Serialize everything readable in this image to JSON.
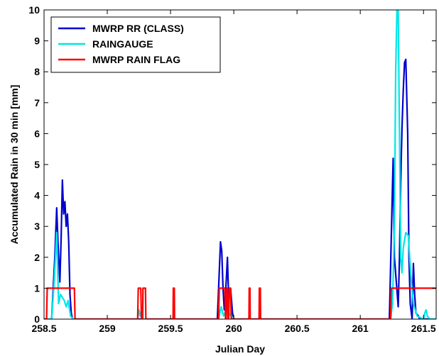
{
  "chart_data": {
    "type": "line",
    "xlabel": "Julian Day",
    "ylabel": "Accumulated Rain in 30 min [mm]",
    "xlim": [
      258.5,
      261.6
    ],
    "ylim": [
      0,
      10
    ],
    "xticks": [
      258.5,
      259,
      259.5,
      260,
      260.5,
      261,
      261.5
    ],
    "xtick_labels": [
      "258.5",
      "259",
      "259.5",
      "260",
      "260.5",
      "261",
      "261.5"
    ],
    "yticks": [
      0,
      1,
      2,
      3,
      4,
      5,
      6,
      7,
      8,
      9,
      10
    ],
    "ytick_labels": [
      "0",
      "1",
      "2",
      "3",
      "4",
      "5",
      "6",
      "7",
      "8",
      "9",
      "10"
    ],
    "grid": false,
    "legend_position": "top-left",
    "series": [
      {
        "name": "MWRP RR (CLASS)",
        "color": "#0000cc",
        "x": [
          258.5,
          258.56,
          258.585,
          258.6,
          258.61,
          258.625,
          258.635,
          258.645,
          258.655,
          258.665,
          258.675,
          258.685,
          258.695,
          258.705,
          258.715,
          258.725,
          258.735,
          258.75,
          259.85,
          259.87,
          259.885,
          259.895,
          259.905,
          259.915,
          259.925,
          259.94,
          259.95,
          259.96,
          259.975,
          259.99,
          260.0,
          261.23,
          261.25,
          261.26,
          261.27,
          261.285,
          261.3,
          261.31,
          261.32,
          261.33,
          261.34,
          261.35,
          261.36,
          261.375,
          261.385,
          261.395,
          261.41,
          261.42,
          261.43,
          261.44,
          261.46,
          261.47,
          261.6
        ],
        "y": [
          0,
          0,
          2.0,
          3.6,
          2.5,
          1.2,
          2.6,
          4.5,
          3.4,
          3.8,
          3.0,
          3.4,
          2.5,
          0.8,
          0.2,
          0,
          0,
          0,
          0,
          0,
          1.5,
          2.5,
          2.2,
          1.0,
          0.3,
          1.2,
          2.0,
          0.6,
          1.0,
          0.2,
          0,
          0,
          3.5,
          5.2,
          2.0,
          1.2,
          0.4,
          2.0,
          4.5,
          6.2,
          7.4,
          8.3,
          8.4,
          6.0,
          2.0,
          0.5,
          0,
          1.8,
          0.8,
          0.2,
          0.1,
          0,
          0
        ]
      },
      {
        "name": "RAINGAUGE",
        "color": "#00e6e6",
        "x": [
          258.5,
          258.56,
          258.58,
          258.6,
          258.615,
          258.63,
          258.645,
          258.66,
          258.675,
          258.69,
          258.71,
          258.73,
          258.75,
          259.24,
          259.25,
          259.26,
          259.27,
          259.28,
          259.88,
          259.9,
          259.92,
          259.94,
          259.96,
          259.98,
          260.0,
          261.24,
          261.255,
          261.27,
          261.28,
          261.29,
          261.3,
          261.31,
          261.32,
          261.33,
          261.34,
          261.36,
          261.38,
          261.4,
          261.42,
          261.45,
          261.5,
          261.51,
          261.52,
          261.53,
          261.55,
          261.6
        ],
        "y": [
          0,
          0,
          1.2,
          2.8,
          0.5,
          0.8,
          0.7,
          0.6,
          0.4,
          0.6,
          0.1,
          0,
          0,
          0,
          0.3,
          0.1,
          0.3,
          0,
          0,
          0.4,
          0.1,
          0.3,
          0.2,
          0.1,
          0,
          0,
          0.5,
          3.0,
          8.0,
          10.0,
          10.0,
          6.0,
          2.0,
          1.5,
          2.3,
          2.8,
          2.7,
          1.4,
          0.5,
          0.1,
          0,
          0.2,
          0.3,
          0.1,
          0,
          0
        ]
      },
      {
        "name": "MWRP RAIN FLAG",
        "color": "#ff0000",
        "x": [
          258.5,
          258.52,
          258.525,
          258.535,
          258.54,
          258.74,
          258.745,
          259.24,
          259.245,
          259.265,
          259.27,
          259.28,
          259.282,
          259.302,
          259.305,
          259.52,
          259.522,
          259.53,
          259.532,
          259.88,
          259.885,
          259.93,
          259.935,
          259.94,
          259.945,
          259.95,
          259.955,
          259.96,
          259.965,
          259.975,
          259.98,
          260.12,
          260.122,
          260.128,
          260.13,
          260.2,
          260.202,
          260.21,
          260.212,
          261.24,
          261.245,
          261.6
        ],
        "y": [
          0,
          0,
          1,
          1,
          1,
          1,
          0,
          0,
          1,
          1,
          0,
          0,
          1,
          1,
          0,
          0,
          1,
          1,
          0,
          0,
          1,
          1,
          0,
          0,
          1,
          1,
          0,
          0,
          1,
          1,
          0,
          0,
          1,
          1,
          0,
          0,
          1,
          1,
          0,
          0,
          1,
          1
        ]
      }
    ]
  }
}
